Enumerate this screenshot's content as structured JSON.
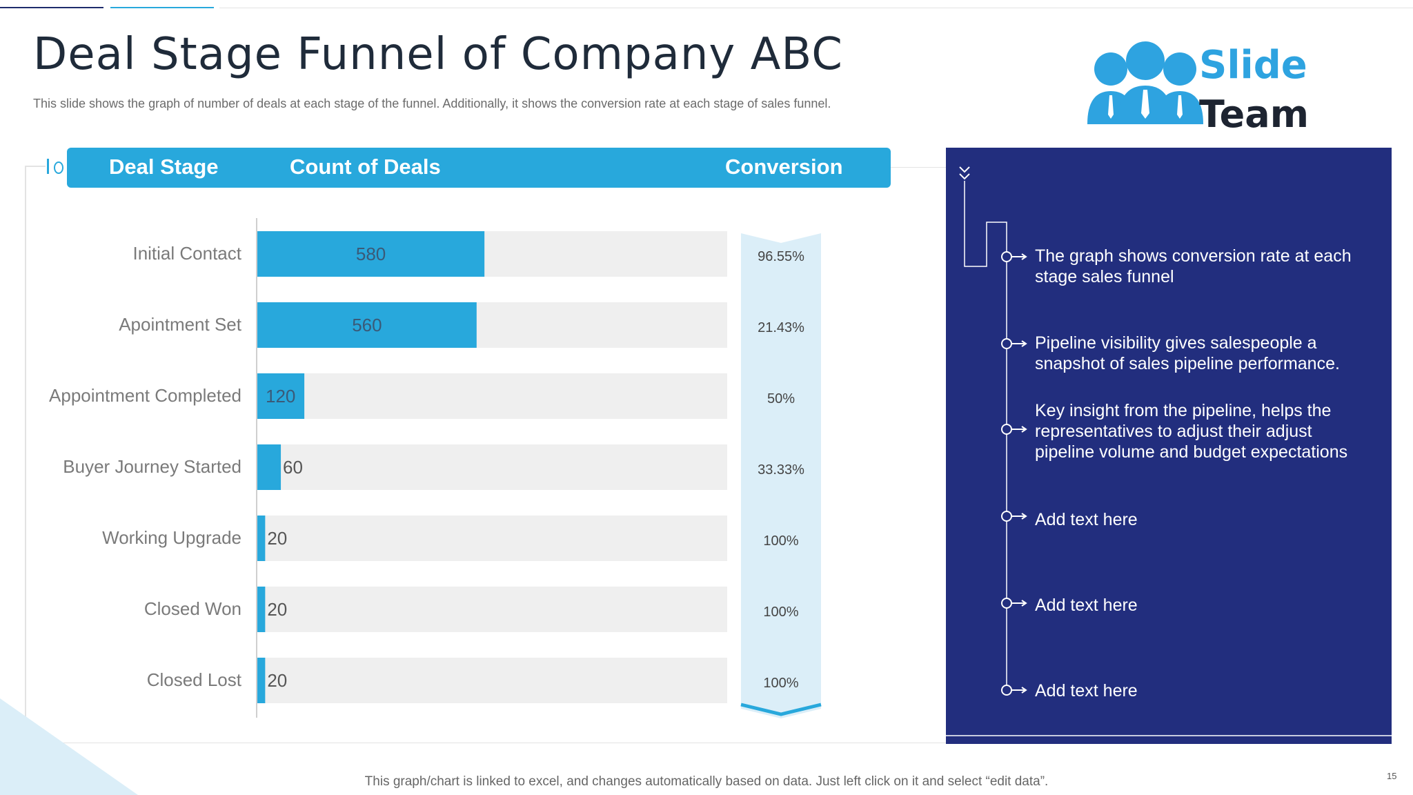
{
  "title": "Deal Stage Funnel of Company ABC",
  "subtitle": "This slide shows the graph of number of deals at each stage of the funnel. Additionally, it shows the conversion rate at each stage of sales funnel.",
  "logo": {
    "line1": "Slide",
    "line2": "Team",
    "icon": "people-icon"
  },
  "table_header": {
    "col1": "Deal Stage",
    "col2": "Count of Deals",
    "col3": "Conversion"
  },
  "colors": {
    "bar": "#28a8dc",
    "track": "#efefef",
    "conversion_band": "#dbeef8",
    "panel": "#222e7e"
  },
  "chart_data": {
    "type": "bar",
    "orientation": "horizontal",
    "categories": [
      "Initial Contact",
      "Apointment Set",
      "Appointment Completed",
      "Buyer Journey Started",
      "Working Upgrade",
      "Closed Won",
      "Closed Lost"
    ],
    "values": [
      580,
      560,
      120,
      60,
      20,
      20,
      20
    ],
    "value_labels": [
      "580",
      "560",
      "120",
      "60",
      "20",
      "20",
      "20"
    ],
    "xlim": [
      0,
      1200
    ],
    "conversion": [
      "96.55%",
      "21.43%",
      "50%",
      "33.33%",
      "100%",
      "100%",
      "100%"
    ],
    "grid": false,
    "legend": "none"
  },
  "notes": [
    "The graph shows conversion rate at each stage sales funnel",
    "Pipeline visibility gives salespeople a snapshot of sales pipeline performance.",
    "Key insight from the pipeline, helps the representatives to adjust their adjust pipeline volume  and budget expectations",
    "Add text here",
    "Add text here",
    "Add text here"
  ],
  "footer": "This graph/chart is linked to excel,  and changes automatically based on data. Just left click on it and select “edit data”.",
  "page_number": "15"
}
